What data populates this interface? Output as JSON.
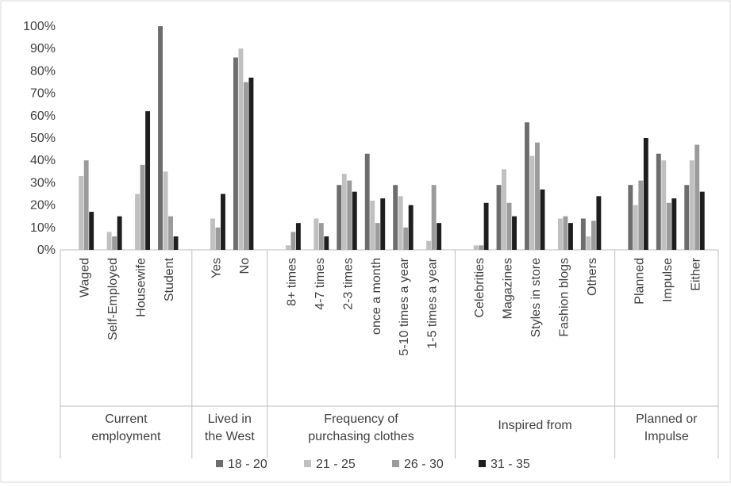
{
  "chart_data": {
    "type": "bar",
    "ylim": [
      0,
      100
    ],
    "yticks": [
      0,
      10,
      20,
      30,
      40,
      50,
      60,
      70,
      80,
      90,
      100
    ],
    "ytick_labels": [
      "0%",
      "10%",
      "20%",
      "30%",
      "40%",
      "50%",
      "60%",
      "70%",
      "80%",
      "90%",
      "100%"
    ],
    "grid": false,
    "legend_position": "bottom",
    "groups": [
      {
        "label": "Current employment",
        "label_lines": [
          "Current",
          "employment"
        ],
        "categories": [
          "Waged",
          "Self-Employed",
          "Housewife",
          "Student"
        ]
      },
      {
        "label": "Lived in the West",
        "label_lines": [
          "Lived in",
          "the West"
        ],
        "categories": [
          "Yes",
          "No"
        ]
      },
      {
        "label": "Frequency of purchasing clothes",
        "label_lines": [
          "Frequency of",
          "purchasing clothes"
        ],
        "categories": [
          "8+ times",
          "4-7 times",
          "2-3 times",
          "once a month",
          "5-10 times a year",
          "1-5 times a year"
        ]
      },
      {
        "label": "Inspired from",
        "label_lines": [
          "Inspired from"
        ],
        "categories": [
          "Celebrities",
          "Magazines",
          "Styles in store",
          "Fashion blogs",
          "Others"
        ]
      },
      {
        "label": "Planned or Impulse",
        "label_lines": [
          "Planned or",
          "Impulse"
        ],
        "categories": [
          "Planned",
          "Impulse",
          "Either"
        ]
      }
    ],
    "series": [
      {
        "name": "18 - 20",
        "color": "#6d6d6d",
        "values": [
          0,
          0,
          0,
          100,
          0,
          86,
          0,
          0,
          29,
          43,
          29,
          0,
          0,
          29,
          57,
          0,
          14,
          29,
          43,
          29
        ]
      },
      {
        "name": "21 - 25",
        "color": "#c0c0c0",
        "values": [
          33,
          8,
          25,
          35,
          14,
          90,
          2,
          14,
          34,
          22,
          24,
          4,
          2,
          36,
          42,
          14,
          6,
          20,
          40,
          40
        ]
      },
      {
        "name": "26 - 30",
        "color": "#9b9b9b",
        "values": [
          40,
          6,
          38,
          15,
          10,
          75,
          8,
          12,
          31,
          12,
          10,
          29,
          2,
          21,
          48,
          15,
          13,
          31,
          21,
          47
        ]
      },
      {
        "name": "31 - 35",
        "color": "#1e1e1e",
        "values": [
          17,
          15,
          62,
          6,
          25,
          77,
          12,
          6,
          26,
          23,
          20,
          12,
          21,
          15,
          27,
          12,
          24,
          50,
          23,
          26
        ]
      }
    ]
  }
}
